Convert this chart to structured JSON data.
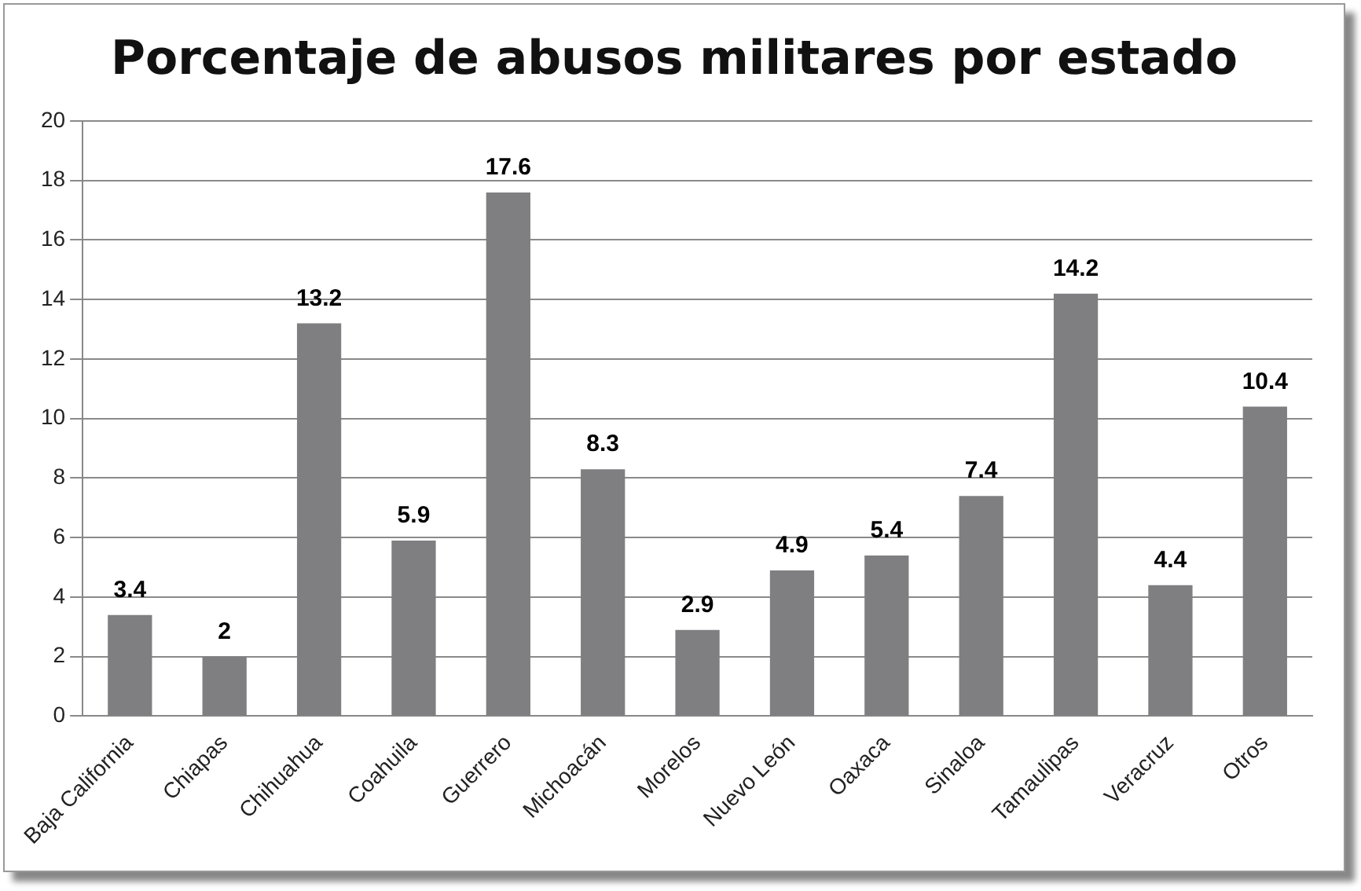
{
  "chart_data": {
    "type": "bar",
    "title": "Porcentaje de abusos militares por estado",
    "categories": [
      "Baja California",
      "Chiapas",
      "Chihuahua",
      "Coahuila",
      "Guerrero",
      "Michoacán",
      "Morelos",
      "Nuevo León",
      "Oaxaca",
      "Sinaloa",
      "Tamaulipas",
      "Veracruz",
      "Otros"
    ],
    "values": [
      3.4,
      2,
      13.2,
      5.9,
      17.6,
      8.3,
      2.9,
      4.9,
      5.4,
      7.4,
      14.2,
      4.4,
      10.4
    ],
    "color": "#7f7f82",
    "ylim": [
      0,
      20
    ],
    "yticks": [
      0,
      2,
      4,
      6,
      8,
      10,
      12,
      14,
      16,
      18,
      20
    ],
    "grid": "y",
    "data_labels": true,
    "legend": false
  }
}
